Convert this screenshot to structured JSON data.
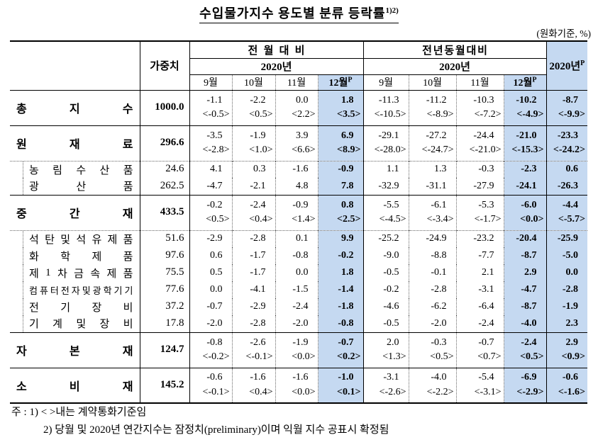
{
  "title": {
    "text": "수입물가지수 용도별 분류 등락률",
    "sup": "1)2)"
  },
  "unit_note": "(원화기준, %)",
  "colors": {
    "highlight_bg": "#C5D9F1"
  },
  "table": {
    "header": {
      "weight": "가중치",
      "mom_title": "전월대비",
      "yoy_title": "전년동월대비",
      "mom_year": "2020년",
      "yoy_year": "2020년",
      "months": [
        "9월",
        "10월",
        "11월",
        "12월"
      ],
      "prelim": "P",
      "annual": "2020년"
    },
    "rows": [
      {
        "label": "총지수",
        "kind": "group",
        "sep": "none",
        "weight": "1000.0",
        "mom": [
          "-1.1",
          "-2.2",
          "0.0",
          "1.8"
        ],
        "mom_br": [
          "<-0.5>",
          "<0.5>",
          "<2.2>",
          "<3.5>"
        ],
        "yoy": [
          "-11.3",
          "-11.2",
          "-10.3",
          "-10.2"
        ],
        "yoy_br": [
          "<-10.5>",
          "<-8.9>",
          "<-7.2>",
          "<-4.9>"
        ],
        "annual": "-8.7",
        "annual_br": "<-9.9>"
      },
      {
        "label": "원재료",
        "kind": "group",
        "sep": "solid",
        "weight": "296.6",
        "mom": [
          "-3.5",
          "-1.9",
          "3.9",
          "6.9"
        ],
        "mom_br": [
          "<-2.8>",
          "<1.0>",
          "<6.6>",
          "<8.9>"
        ],
        "yoy": [
          "-29.1",
          "-27.2",
          "-24.4",
          "-21.0"
        ],
        "yoy_br": [
          "<-28.0>",
          "<-24.7>",
          "<-21.0>",
          "<-15.3>"
        ],
        "annual": "-23.3",
        "annual_br": "<-24.2>"
      },
      {
        "label": "농림수산품",
        "kind": "sub",
        "sep": "dotted",
        "weight": "24.6",
        "mom": [
          "4.1",
          "0.3",
          "-1.6",
          "-0.9"
        ],
        "yoy": [
          "1.1",
          "1.3",
          "-0.3",
          "-2.3"
        ],
        "annual": "0.6"
      },
      {
        "label": "광산품",
        "kind": "sub",
        "sep": "none",
        "weight": "262.5",
        "mom": [
          "-4.7",
          "-2.1",
          "4.8",
          "7.8"
        ],
        "yoy": [
          "-32.9",
          "-31.1",
          "-27.9",
          "-24.1"
        ],
        "annual": "-26.3"
      },
      {
        "label": "중간재",
        "kind": "group",
        "sep": "solid",
        "weight": "433.5",
        "mom": [
          "-0.2",
          "-2.4",
          "-0.9",
          "0.8"
        ],
        "mom_br": [
          "<0.5>",
          "<0.4>",
          "<1.4>",
          "<2.5>"
        ],
        "yoy": [
          "-5.5",
          "-6.1",
          "-5.3",
          "-6.0"
        ],
        "yoy_br": [
          "<-4.5>",
          "<-3.4>",
          "<-1.7>",
          "<0.0>"
        ],
        "annual": "-4.4",
        "annual_br": "<-5.7>"
      },
      {
        "label": "석탄및석유제품",
        "kind": "sub",
        "sep": "dotted",
        "weight": "51.6",
        "mom": [
          "-2.9",
          "-2.8",
          "0.1",
          "9.9"
        ],
        "yoy": [
          "-25.2",
          "-24.9",
          "-23.2",
          "-20.4"
        ],
        "annual": "-25.9"
      },
      {
        "label": "화학제품",
        "kind": "sub",
        "sep": "none",
        "weight": "97.6",
        "mom": [
          "0.6",
          "-1.7",
          "-0.8",
          "-0.2"
        ],
        "yoy": [
          "-9.0",
          "-8.8",
          "-7.7",
          "-8.7"
        ],
        "annual": "-5.0"
      },
      {
        "label": "제1차금속제품",
        "kind": "sub",
        "sep": "none",
        "weight": "75.5",
        "mom": [
          "0.5",
          "-1.7",
          "0.0",
          "1.8"
        ],
        "yoy": [
          "-0.5",
          "-0.1",
          "2.1",
          "2.9"
        ],
        "annual": "0.0"
      },
      {
        "label": "컴퓨터전자및광학기기",
        "kind": "sub",
        "sep": "none",
        "weight": "77.6",
        "mom": [
          "0.0",
          "-4.1",
          "-1.5",
          "-1.4"
        ],
        "yoy": [
          "-0.2",
          "-2.8",
          "-3.1",
          "-4.7"
        ],
        "annual": "-2.8"
      },
      {
        "label": "전기장비",
        "kind": "sub",
        "sep": "none",
        "weight": "37.2",
        "mom": [
          "-0.7",
          "-2.9",
          "-2.4",
          "-1.8"
        ],
        "yoy": [
          "-4.6",
          "-6.2",
          "-6.4",
          "-8.7"
        ],
        "annual": "-1.9"
      },
      {
        "label": "기계및장비",
        "kind": "sub",
        "sep": "none",
        "weight": "17.8",
        "mom": [
          "-2.0",
          "-2.8",
          "-2.0",
          "-0.8"
        ],
        "yoy": [
          "-0.5",
          "-2.0",
          "-2.4",
          "-4.0"
        ],
        "annual": "2.3"
      },
      {
        "label": "자본재",
        "kind": "group",
        "sep": "solid",
        "weight": "124.7",
        "mom": [
          "-0.8",
          "-2.6",
          "-1.9",
          "-0.7"
        ],
        "mom_br": [
          "<-0.2>",
          "<-0.1>",
          "<0.0>",
          "<0.2>"
        ],
        "yoy": [
          "2.0",
          "-0.3",
          "-0.7",
          "-2.4"
        ],
        "yoy_br": [
          "<1.3>",
          "<0.5>",
          "<0.7>",
          "<0.5>"
        ],
        "annual": "2.9",
        "annual_br": "<0.9>"
      },
      {
        "label": "소비재",
        "kind": "group",
        "sep": "solid",
        "weight": "145.2",
        "mom": [
          "-0.6",
          "-1.6",
          "-1.6",
          "-1.0"
        ],
        "mom_br": [
          "<-0.1>",
          "<0.4>",
          "<0.0>",
          "<0.1>"
        ],
        "yoy": [
          "-3.1",
          "-4.0",
          "-5.4",
          "-6.9"
        ],
        "yoy_br": [
          "<-2.6>",
          "<-2.2>",
          "<-3.1>",
          "<-2.9>"
        ],
        "annual": "-0.6",
        "annual_br": "<-1.6>"
      }
    ]
  },
  "notes": {
    "line1": "주 : 1) < >내는 계약통화기준임",
    "line2": "2) 당월 및 2020년 연간지수는 잠정치(preliminary)이며 익월 지수 공표시 확정됨"
  }
}
